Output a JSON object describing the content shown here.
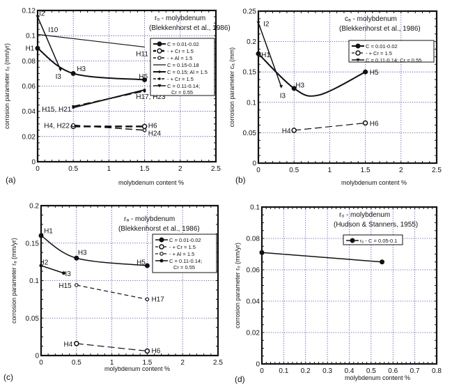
{
  "chart_data": [
    {
      "id": "a",
      "type": "line",
      "panel_label": "(a)",
      "title": "rₒ - molybdenum",
      "subtitle": "(Blekkenhorst et al., 1986)",
      "xlabel": "molybdenum content  %",
      "ylabel": "corrosion parameter  rₒ (mm/yr)",
      "xlim": [
        0,
        2.5
      ],
      "ylim": [
        0,
        0.12
      ],
      "xticks": [
        0,
        0.5,
        1,
        1.5,
        2,
        2.5
      ],
      "xtick_labels": [
        "0",
        "0.5",
        "1",
        "1.5",
        "2",
        "2.5"
      ],
      "yticks": [
        0,
        0.02,
        0.04,
        0.06,
        0.08,
        0.1,
        0.12
      ],
      "ytick_labels": [
        "0",
        "0.02",
        "0.04",
        "0.06",
        "0.08",
        "0.1",
        "0.12"
      ],
      "grid": true,
      "legend_position": "right",
      "series": [
        {
          "name": "C = 0.01-0.02",
          "style": "solid",
          "marker": "filled",
          "width": 2,
          "smooth": true,
          "x": [
            0,
            0.5,
            1.5
          ],
          "y": [
            0.09,
            0.07,
            0.065
          ]
        },
        {
          "name": "  -  + Cr = 1.5",
          "style": "dash",
          "marker": "open",
          "width": 2.5,
          "smooth": false,
          "x": [
            0.5,
            1.5
          ],
          "y": [
            0.028,
            0.028
          ]
        },
        {
          "name": "  -  + Al = 1.5",
          "style": "dash",
          "marker": "open-small",
          "width": 1.5,
          "smooth": false,
          "x": [
            0.5,
            1.5
          ],
          "y": [
            0.029,
            0.025
          ]
        },
        {
          "name": "C = 0.15-0.18",
          "style": "solid",
          "marker": "none",
          "width": 1.2,
          "smooth": false,
          "x": [
            0,
            1.5
          ],
          "y": [
            0.101,
            0.091
          ]
        },
        {
          "name": "C = 0.15; Al = 1.5",
          "style": "solid",
          "marker": "small",
          "width": 2,
          "smooth": false,
          "x": [
            0.5,
            1.5
          ],
          "y": [
            0.043,
            0.057
          ]
        },
        {
          "name": "  -  + Cr = 1.5",
          "style": "dash",
          "marker": "small",
          "width": 1.5,
          "smooth": false,
          "x": [
            0.5,
            1.5
          ],
          "y": [
            0.044,
            0.056
          ]
        },
        {
          "name": "C = 0.11-0.14;\nCr = 0.55",
          "style": "solid",
          "marker": "triangle",
          "width": 1.5,
          "smooth": false,
          "x": [
            0,
            0.32
          ],
          "y": [
            0.115,
            0.073
          ]
        }
      ],
      "annotations": [
        {
          "text": "I2",
          "x": 0.02,
          "y": 0.118
        },
        {
          "text": "I10",
          "x": 0.15,
          "y": 0.105
        },
        {
          "text": "H1",
          "x": -0.17,
          "y": 0.0905
        },
        {
          "text": "I3",
          "x": 0.25,
          "y": 0.068
        },
        {
          "text": "H3",
          "x": 0.55,
          "y": 0.074
        },
        {
          "text": "H11",
          "x": 1.38,
          "y": 0.086
        },
        {
          "text": "H5",
          "x": 1.42,
          "y": 0.068
        },
        {
          "text": "H17, H23",
          "x": 1.38,
          "y": 0.052
        },
        {
          "text": "H15, H21",
          "x": 0.06,
          "y": 0.042
        },
        {
          "text": "H4, H22",
          "x": 0.09,
          "y": 0.029
        },
        {
          "text": "H6",
          "x": 1.55,
          "y": 0.029
        },
        {
          "text": "H24",
          "x": 1.55,
          "y": 0.023
        }
      ]
    },
    {
      "id": "b",
      "type": "line",
      "panel_label": "(b)",
      "title": "cₐ - molybdenum",
      "subtitle": "(Blekkenhorst et al., 1986)",
      "xlabel": "molybdenum content  %",
      "ylabel": "corrosion parameter  cₐ (mm)",
      "xlim": [
        0,
        2.5
      ],
      "ylim": [
        0,
        0.25
      ],
      "xticks": [
        0,
        0.5,
        1,
        1.5,
        2,
        2.5
      ],
      "xtick_labels": [
        "0",
        "0.5",
        "1",
        "1.5",
        "2",
        "2.5"
      ],
      "yticks": [
        0,
        0.05,
        0.1,
        0.15,
        0.2,
        0.25
      ],
      "ytick_labels": [
        "0",
        "0.05",
        "0.1",
        "0.15",
        "0.2",
        "0.25"
      ],
      "grid": true,
      "legend_position": "top-right",
      "series": [
        {
          "name": "C = 0.01-0.02",
          "style": "solid",
          "marker": "filled",
          "width": 2,
          "smooth": true,
          "x": [
            0,
            0.5,
            0.85,
            1.5
          ],
          "y": [
            0.18,
            0.123,
            0.112,
            0.15
          ],
          "marker_x": [
            0,
            0.5,
            1.5
          ],
          "marker_y": [
            0.18,
            0.123,
            0.15
          ]
        },
        {
          "name": "  -  + Cr = 1.5",
          "style": "dash",
          "marker": "open",
          "width": 1.2,
          "smooth": false,
          "x": [
            0.5,
            1.5
          ],
          "y": [
            0.054,
            0.066
          ]
        },
        {
          "name": "C = 0.11-0.14;  Cr = 0.55",
          "style": "solid",
          "marker": "triangle",
          "width": 1.5,
          "smooth": false,
          "x": [
            0,
            0.32
          ],
          "y": [
            0.231,
            0.126
          ]
        }
      ],
      "annotations": [
        {
          "text": "I2",
          "x": 0.07,
          "y": 0.23
        },
        {
          "text": "H1",
          "x": 0.04,
          "y": 0.179
        },
        {
          "text": "I3",
          "x": 0.3,
          "y": 0.112
        },
        {
          "text": "H3",
          "x": 0.52,
          "y": 0.129
        },
        {
          "text": "H5",
          "x": 1.56,
          "y": 0.15
        },
        {
          "text": "H4",
          "x": 0.33,
          "y": 0.054
        },
        {
          "text": "H6",
          "x": 1.56,
          "y": 0.066
        }
      ]
    },
    {
      "id": "c",
      "type": "line",
      "panel_label": "(c)",
      "title": "rₐ - molybdenum",
      "subtitle": "(Blekkenhorst et al., 1986)",
      "xlabel": "molybdenum content  %",
      "ylabel": "corrosion parameter  rₐ (mm/yr)",
      "xlim": [
        0,
        2.5
      ],
      "ylim": [
        0,
        0.2
      ],
      "xticks": [
        0,
        0.5,
        1,
        1.5,
        2,
        2.5
      ],
      "xtick_labels": [
        "0",
        "0.5",
        "1",
        "1.5",
        "2",
        "2.5"
      ],
      "yticks": [
        0,
        0.05,
        0.1,
        0.15,
        0.2
      ],
      "ytick_labels": [
        "0",
        "0.05",
        "0.1",
        "0.15",
        "0.2"
      ],
      "grid": true,
      "legend_position": "right",
      "series": [
        {
          "name": "C = 0.01-0.02",
          "style": "solid",
          "marker": "filled",
          "width": 1.5,
          "smooth": true,
          "x": [
            0,
            0.5,
            1.5
          ],
          "y": [
            0.16,
            0.13,
            0.12
          ]
        },
        {
          "name": "  -  + Cr = 1.5",
          "style": "dash",
          "marker": "open",
          "width": 1.2,
          "smooth": false,
          "x": [
            0.5,
            1.5
          ],
          "y": [
            0.016,
            0.006
          ]
        },
        {
          "name": "  -  + Al = 1.5",
          "style": "dash-short",
          "marker": "open-small",
          "width": 1.2,
          "smooth": false,
          "x": [
            0.5,
            1.5
          ],
          "y": [
            0.094,
            0.075
          ]
        },
        {
          "name": "C = 0.11-0.14;\nCr = 0.55",
          "style": "solid",
          "marker": "filled-small",
          "width": 1.5,
          "smooth": false,
          "x": [
            0,
            0.32
          ],
          "y": [
            0.12,
            0.11
          ]
        }
      ],
      "annotations": [
        {
          "text": "H1",
          "x": 0.04,
          "y": 0.167
        },
        {
          "text": "H3",
          "x": 0.52,
          "y": 0.138
        },
        {
          "text": "H5",
          "x": 1.35,
          "y": 0.125
        },
        {
          "text": "I2",
          "x": 0.02,
          "y": 0.125
        },
        {
          "text": "I3",
          "x": 0.34,
          "y": 0.11
        },
        {
          "text": "H15",
          "x": 0.25,
          "y": 0.094
        },
        {
          "text": "H17",
          "x": 1.56,
          "y": 0.076
        },
        {
          "text": "H4",
          "x": 0.32,
          "y": 0.016
        },
        {
          "text": "H6",
          "x": 1.56,
          "y": 0.007
        }
      ]
    },
    {
      "id": "d",
      "type": "line",
      "panel_label": "(d)",
      "title": "rₒ - molybdenum",
      "subtitle": "(Hudson & Stanners, 1955)",
      "xlabel": "molybdenum content  %",
      "ylabel": "corrosion parameter  rₒ (mm/yr)",
      "xlim": [
        0,
        0.8
      ],
      "ylim": [
        0,
        0.1
      ],
      "xticks": [
        0,
        0.1,
        0.2,
        0.3,
        0.4,
        0.5,
        0.6,
        0.7,
        0.8
      ],
      "xtick_labels": [
        "0",
        "0.1",
        "0.2",
        "0.3",
        "0.4",
        "0.5",
        "0.6",
        "0.7",
        "0.8"
      ],
      "yticks": [
        0,
        0.02,
        0.04,
        0.06,
        0.08,
        0.1
      ],
      "ytick_labels": [
        "0",
        "0.02",
        "0.04",
        "0.06",
        "0.08",
        "0.1"
      ],
      "grid": true,
      "legend_position": "top-right",
      "series": [
        {
          "name": "rₒ - C = 0.05-0.1",
          "style": "solid",
          "marker": "filled",
          "width": 1.5,
          "smooth": false,
          "x": [
            0,
            0.55
          ],
          "y": [
            0.071,
            0.065
          ]
        }
      ],
      "annotations": []
    }
  ]
}
